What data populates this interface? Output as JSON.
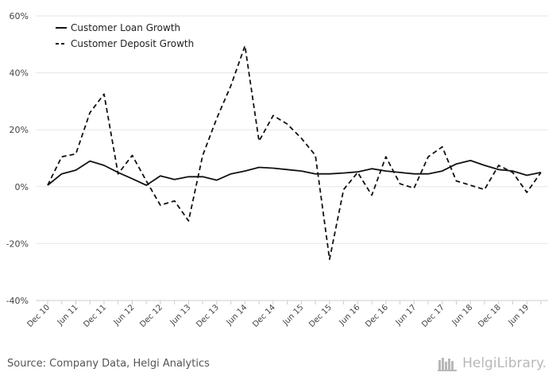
{
  "chart_data": {
    "type": "line",
    "title": "",
    "xlabel": "",
    "ylabel": "",
    "ylim": [
      -40,
      60
    ],
    "yticks": [
      -40,
      -20,
      0,
      20,
      40,
      60
    ],
    "ytick_labels": [
      "-40%",
      "-20%",
      "0%",
      "20%",
      "40%",
      "60%"
    ],
    "grid": true,
    "legend_position": "top-left",
    "x": [
      "Dec 10",
      "Mar 11",
      "Jun 11",
      "Sep 11",
      "Dec 11",
      "Mar 12",
      "Jun 12",
      "Sep 12",
      "Dec 12",
      "Mar 13",
      "Jun 13",
      "Sep 13",
      "Dec 13",
      "Mar 14",
      "Jun 14",
      "Sep 14",
      "Dec 14",
      "Mar 15",
      "Jun 15",
      "Sep 15",
      "Dec 15",
      "Mar 16",
      "Jun 16",
      "Sep 16",
      "Dec 16",
      "Mar 17",
      "Jun 17",
      "Sep 17",
      "Dec 17",
      "Mar 18",
      "Jun 18",
      "Sep 18",
      "Dec 18",
      "Mar 19",
      "Jun 19",
      "Sep 19"
    ],
    "x_tick_labels": [
      "Dec 10",
      "Jun 11",
      "Dec 11",
      "Jun 12",
      "Dec 12",
      "Jun 13",
      "Dec 13",
      "Jun 14",
      "Dec 14",
      "Jun 15",
      "Dec 15",
      "Jun 16",
      "Dec 16",
      "Jun 17",
      "Dec 17",
      "Jun 18",
      "Dec 18",
      "Jun 19"
    ],
    "series": [
      {
        "name": "Customer Loan Growth",
        "style": "solid",
        "values": [
          0.5,
          4.5,
          5.8,
          9.0,
          7.5,
          5.0,
          2.8,
          0.5,
          3.8,
          2.5,
          3.5,
          3.5,
          2.3,
          4.5,
          5.5,
          6.8,
          6.5,
          6.0,
          5.5,
          4.5,
          4.5,
          4.8,
          5.2,
          6.3,
          5.5,
          5.0,
          4.5,
          4.5,
          5.5,
          8.0,
          9.2,
          7.5,
          6.0,
          5.5,
          4.0,
          5.0
        ]
      },
      {
        "name": "Customer Deposit Growth",
        "style": "dashed",
        "values": [
          0.5,
          10.5,
          11.5,
          26.0,
          32.5,
          4.5,
          11.0,
          2.0,
          -6.5,
          -5.0,
          -12.0,
          11.0,
          24.0,
          35.5,
          49.5,
          16.0,
          25.0,
          22.0,
          17.0,
          11.0,
          -25.5,
          -1.0,
          5.0,
          -3.0,
          10.5,
          1.0,
          -0.5,
          10.5,
          14.0,
          2.0,
          0.5,
          -1.0,
          7.5,
          5.0,
          -2.0,
          5.0
        ]
      }
    ]
  },
  "footer": {
    "source": "Source: Company Data, Helgi Analytics",
    "logo_text": "HelgiLibrary."
  },
  "colors": {
    "line": "#111111",
    "grid": "#e6e6e6",
    "axis": "#cccccc"
  }
}
